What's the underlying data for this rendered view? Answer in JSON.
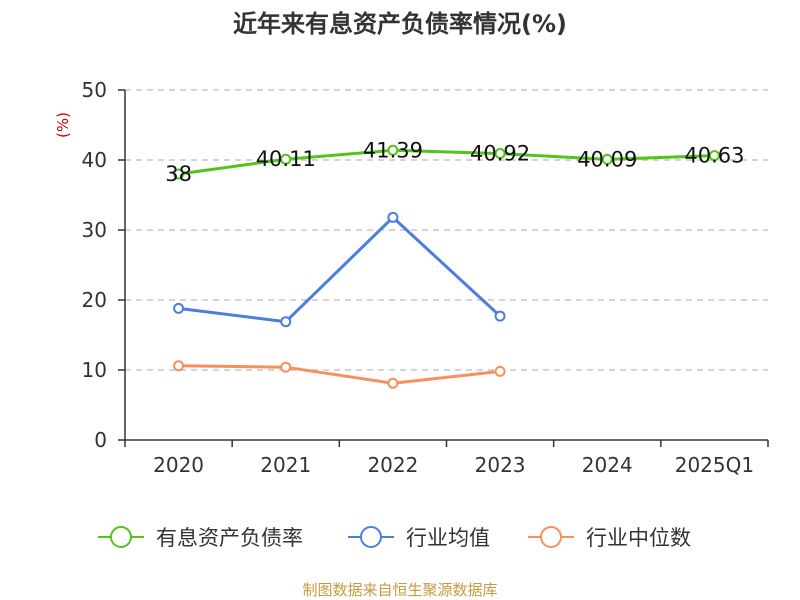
{
  "chart_data": {
    "type": "line",
    "title": "近年来有息资产负债率情况(%)",
    "ylabel": "(%)",
    "xlabel": "",
    "categories": [
      "2020",
      "2021",
      "2022",
      "2023",
      "2024",
      "2025Q1"
    ],
    "ylim": [
      0,
      50
    ],
    "yticks": [
      0,
      10,
      20,
      30,
      40,
      50
    ],
    "grid": true,
    "legend_position": "bottom",
    "series": [
      {
        "name": "有息资产负债率",
        "color": "#52c41a",
        "values": [
          38,
          40.11,
          41.39,
          40.92,
          40.09,
          40.63
        ],
        "labels": [
          "38",
          "40.11",
          "41.39",
          "40.92",
          "40.09",
          "40.63"
        ]
      },
      {
        "name": "行业均值",
        "color": "#4a7fdc",
        "values": [
          18.8,
          16.9,
          31.8,
          17.7,
          null,
          null
        ]
      },
      {
        "name": "行业中位数",
        "color": "#f6915e",
        "values": [
          10.6,
          10.4,
          8.1,
          9.8,
          null,
          null
        ]
      }
    ]
  },
  "source": "制图数据来自恒生聚源数据库",
  "colors": {
    "axis": "#333333",
    "grid": "#bbbbbb",
    "ylabel": "#cc0000",
    "source": "#c89a3c"
  }
}
